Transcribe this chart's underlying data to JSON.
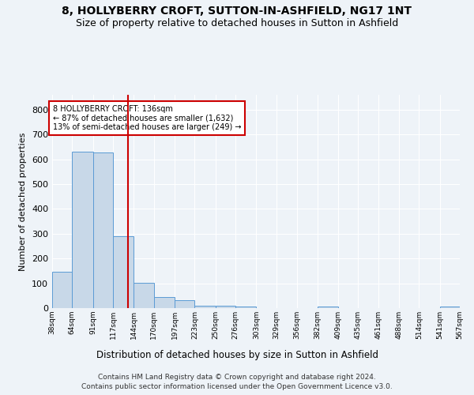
{
  "title": "8, HOLLYBERRY CROFT, SUTTON-IN-ASHFIELD, NG17 1NT",
  "subtitle": "Size of property relative to detached houses in Sutton in Ashfield",
  "xlabel": "Distribution of detached houses by size in Sutton in Ashfield",
  "ylabel": "Number of detached properties",
  "bar_color": "#c8d8e8",
  "bar_edge_color": "#5b9bd5",
  "vline_color": "#cc0000",
  "vline_x": 136,
  "bin_edges": [
    38,
    64,
    91,
    117,
    144,
    170,
    197,
    223,
    250,
    276,
    303,
    329,
    356,
    382,
    409,
    435,
    461,
    488,
    514,
    541,
    567
  ],
  "bin_labels": [
    "38sqm",
    "64sqm",
    "91sqm",
    "117sqm",
    "144sqm",
    "170sqm",
    "197sqm",
    "223sqm",
    "250sqm",
    "276sqm",
    "303sqm",
    "329sqm",
    "356sqm",
    "382sqm",
    "409sqm",
    "435sqm",
    "461sqm",
    "488sqm",
    "514sqm",
    "541sqm",
    "567sqm"
  ],
  "bar_heights": [
    148,
    632,
    628,
    290,
    103,
    46,
    31,
    11,
    10,
    5,
    0,
    0,
    0,
    5,
    0,
    0,
    0,
    0,
    0,
    5
  ],
  "ylim": [
    0,
    860
  ],
  "yticks": [
    0,
    100,
    200,
    300,
    400,
    500,
    600,
    700,
    800
  ],
  "annotation_title": "8 HOLLYBERRY CROFT: 136sqm",
  "annotation_line1": "← 87% of detached houses are smaller (1,632)",
  "annotation_line2": "13% of semi-detached houses are larger (249) →",
  "footer1": "Contains HM Land Registry data © Crown copyright and database right 2024.",
  "footer2": "Contains public sector information licensed under the Open Government Licence v3.0.",
  "background_color": "#eef3f8",
  "plot_background": "#eef3f8",
  "grid_color": "#ffffff",
  "title_fontsize": 10,
  "subtitle_fontsize": 9,
  "annotation_box_edge": "#cc0000"
}
